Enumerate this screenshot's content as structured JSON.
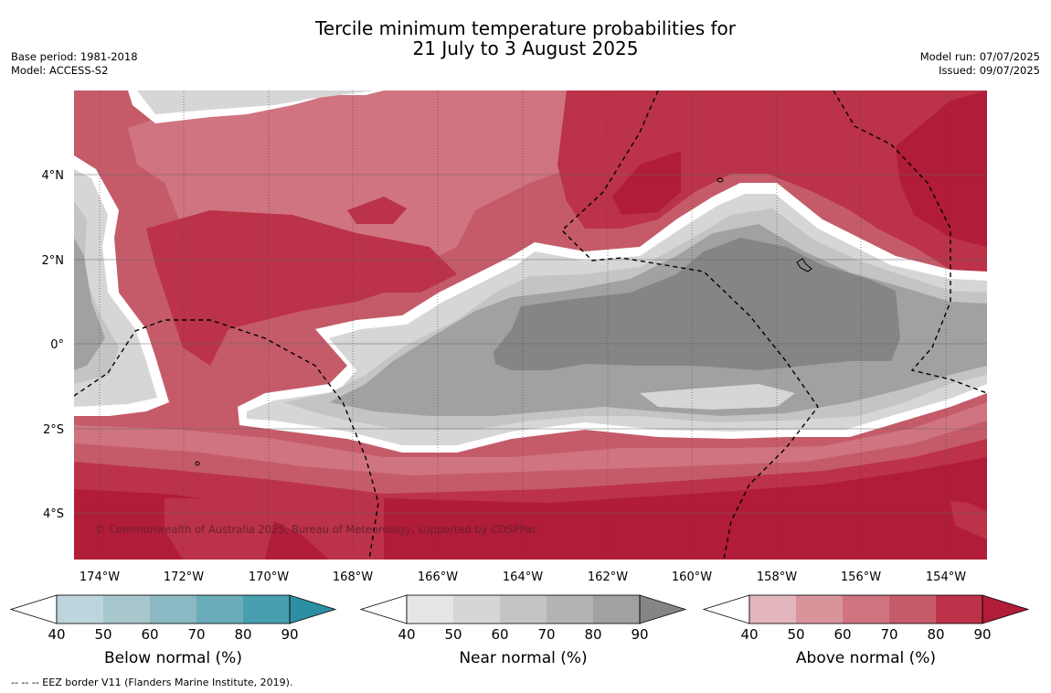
{
  "title": {
    "line1": "Tercile minimum temperature probabilities for",
    "line2": "21 July to 3 August 2025"
  },
  "meta_left": {
    "base_period": "Base period: 1981-2018",
    "model": "Model: ACCESS-S2"
  },
  "meta_right": {
    "model_run": "Model run: 07/07/2025",
    "issued": "Issued: 09/07/2025"
  },
  "copyright": "© Commonwealth of Australia 2025, Bureau of Meteorology, supported by COSPPac",
  "axes": {
    "x_ticks": [
      "174°W",
      "172°W",
      "170°W",
      "168°W",
      "166°W",
      "164°W",
      "162°W",
      "160°W",
      "158°W",
      "156°W",
      "154°W"
    ],
    "y_ticks": [
      "4°N",
      "2°N",
      "0°",
      "2°S",
      "4°S"
    ]
  },
  "colorbars": [
    {
      "title": "Below normal (%)",
      "ticks": [
        "40",
        "50",
        "60",
        "70",
        "80",
        "90"
      ],
      "colors": [
        "#ffffff",
        "#bdd5dc",
        "#a7c7cd",
        "#8ab8c3",
        "#6aacb9",
        "#479fb0",
        "#2d8fa3"
      ]
    },
    {
      "title": "Near normal (%)",
      "ticks": [
        "40",
        "50",
        "60",
        "70",
        "80",
        "90"
      ],
      "colors": [
        "#ffffff",
        "#e6e6e6",
        "#d6d6d6",
        "#c4c4c4",
        "#b3b3b3",
        "#a1a1a1",
        "#858585"
      ]
    },
    {
      "title": "Above normal (%)",
      "ticks": [
        "40",
        "50",
        "60",
        "70",
        "80",
        "90"
      ],
      "colors": [
        "#ffffff",
        "#e2b6bc",
        "#d9939b",
        "#cf7480",
        "#c55b69",
        "#bb3249",
        "#b11c38"
      ]
    }
  ],
  "footnote": "--  --  -- EEZ border V11 (Flanders Marine Institute, 2019)."
}
